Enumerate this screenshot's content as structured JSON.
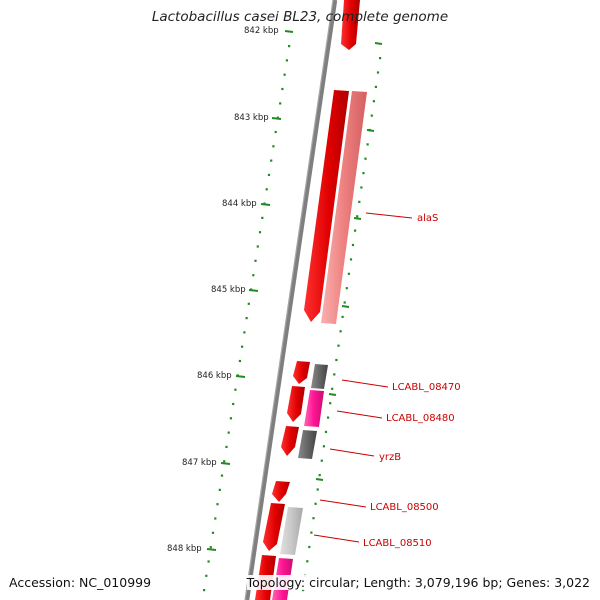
{
  "header": {
    "title": "Lactobacillus casei BL23, complete genome"
  },
  "footer": {
    "accession": "Accession: NC_010999",
    "topology": "Topology: circular; Length: 3,079,196 bp; Genes: 3,022"
  },
  "scale": {
    "unit": "kbp",
    "labels": [
      "842 kbp",
      "843 kbp",
      "844 kbp",
      "845 kbp",
      "846 kbp",
      "847 kbp",
      "848 kbp"
    ]
  },
  "genes": [
    {
      "label": "alaS"
    },
    {
      "label": "LCABL_08470"
    },
    {
      "label": "LCABL_08480"
    },
    {
      "label": "yrzB"
    },
    {
      "label": "LCABL_08500"
    },
    {
      "label": "LCABL_08510"
    }
  ],
  "colors": {
    "backbone": "#7f7f7f",
    "gene_forward": "#e60000",
    "gene_light": "#f08a8a",
    "gene_magenta": "#ff1493",
    "gene_gray": "#666666",
    "gene_lightgray": "#c8c8c8",
    "ruler": "#228b22",
    "label_text": "#cc0000"
  }
}
